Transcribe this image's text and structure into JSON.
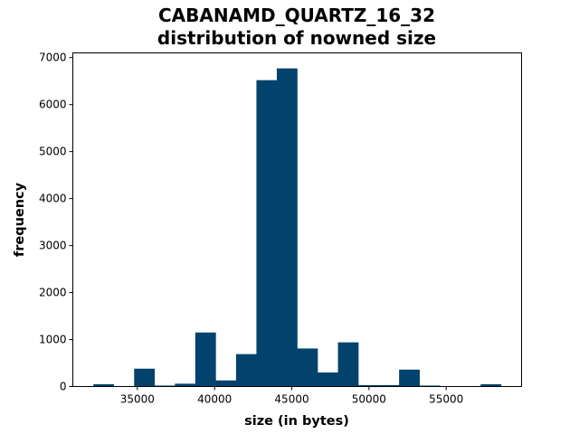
{
  "chart_data": {
    "type": "bar",
    "title_lines": [
      "CABANAMD_QUARTZ_16_32",
      "distribution of nowned size"
    ],
    "xlabel": "size (in bytes)",
    "ylabel": "frequency",
    "bin_edges": [
      32150,
      33470,
      34790,
      36110,
      37430,
      38750,
      40070,
      41390,
      42710,
      44030,
      45350,
      46670,
      47990,
      49310,
      50630,
      51950,
      53270,
      54590,
      55910,
      57230,
      58550
    ],
    "values": [
      50,
      0,
      380,
      20,
      60,
      1150,
      130,
      690,
      6520,
      6770,
      810,
      300,
      940,
      30,
      30,
      360,
      20,
      0,
      0,
      50
    ],
    "xlim": [
      30820,
      59880
    ],
    "ylim": [
      0,
      7100
    ],
    "xticks": [
      35000,
      40000,
      45000,
      50000,
      55000
    ],
    "yticks": [
      0,
      1000,
      2000,
      3000,
      4000,
      5000,
      6000,
      7000
    ],
    "bar_color": "#03426d",
    "grid": false
  }
}
